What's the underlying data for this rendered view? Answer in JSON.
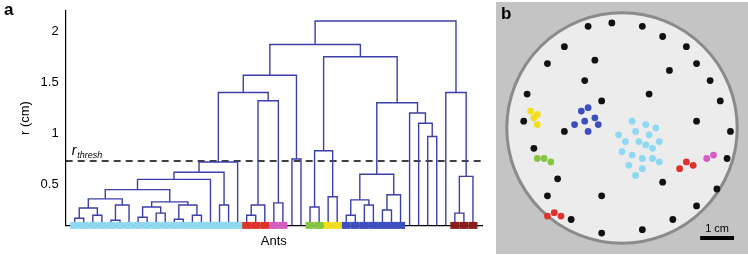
{
  "chart_data": [
    {
      "type": "dendrogram",
      "panel": "a",
      "ylabel": "r (cm)",
      "xlabel": "Ants",
      "ylim": [
        0.1,
        2.2
      ],
      "yticks": [
        0.5,
        1,
        1.5,
        2
      ],
      "tick_labels": "y",
      "color": "#3b3fa8",
      "threshold": {
        "value": 0.73,
        "label": "r",
        "subscript": "thresh",
        "line_style": "dashed"
      },
      "tree": {
        "r": 2.1,
        "c": [
          {
            "r": 1.87,
            "c": [
              {
                "r": 1.57,
                "c": [
                  {
                    "r": 1.4,
                    "c": [
                      {
                        "r": 0.72,
                        "c": [
                          {
                            "r": 0.62,
                            "c": [
                              {
                                "r": 0.55,
                                "c": [
                                  {
                                    "r": 0.45,
                                    "c": [
                                      {
                                        "r": 0.36,
                                        "c": [
                                          {
                                            "r": 0.27,
                                            "c": [
                                              {
                                                "r": 0.17,
                                                "c": [
                                                  "#8fd8f2",
                                                  "#8fd8f2"
                                                ]
                                              },
                                              {
                                                "r": 0.2,
                                                "c": [
                                                  "#8fd8f2",
                                                  "#8fd8f2"
                                                ]
                                              }
                                            ]
                                          },
                                          {
                                            "r": 0.3,
                                            "c": [
                                              {
                                                "r": 0.15,
                                                "c": [
                                                  "#8fd8f2",
                                                  "#8fd8f2"
                                                ]
                                              },
                                              "#8fd8f2"
                                            ]
                                          }
                                        ]
                                      },
                                      {
                                        "r": 0.33,
                                        "c": [
                                          {
                                            "r": 0.28,
                                            "c": [
                                              {
                                                "r": 0.18,
                                                "c": [
                                                  "#8fd8f2",
                                                  "#8fd8f2"
                                                ]
                                              },
                                              {
                                                "r": 0.22,
                                                "c": [
                                                  "#8fd8f2",
                                                  "#8fd8f2"
                                                ]
                                              }
                                            ]
                                          },
                                          {
                                            "r": 0.3,
                                            "c": [
                                              {
                                                "r": 0.16,
                                                "c": [
                                                  "#8fd8f2",
                                                  "#8fd8f2"
                                                ]
                                              },
                                              {
                                                "r": 0.2,
                                                "c": [
                                                  "#8fd8f2",
                                                  "#8fd8f2"
                                                ]
                                              }
                                            ]
                                          }
                                        ]
                                      }
                                    ]
                                  },
                                  "#8fd8f2"
                                ]
                              },
                              {
                                "r": 0.3,
                                "c": [
                                  "#8fd8f2",
                                  "#8fd8f2"
                                ]
                              }
                            ]
                          },
                          "#8fd8f2"
                        ]
                      },
                      {
                        "r": 1.32,
                        "c": [
                          {
                            "r": 0.3,
                            "c": [
                              {
                                "r": 0.2,
                                "c": [
                                  "#e0322c",
                                  "#e0322c"
                                ]
                              },
                              "#e0322c"
                            ]
                          },
                          {
                            "r": 0.32,
                            "c": [
                              "#d65bc3",
                              "#d65bc3"
                            ]
                          }
                        ]
                      }
                    ]
                  },
                  {
                    "r": 0.75,
                    "c": [
                      null,
                      null
                    ]
                  }
                ]
              },
              {
                "r": 1.75,
                "c": [
                  {
                    "r": 0.83,
                    "c": [
                      {
                        "r": 0.28,
                        "c": [
                          "#86c540",
                          "#86c540"
                        ]
                      },
                      {
                        "r": 0.38,
                        "c": [
                          "#f2df1a",
                          "#f2df1a"
                        ]
                      }
                    ]
                  },
                  {
                    "r": 1.3,
                    "c": [
                      {
                        "r": 0.6,
                        "c": [
                          {
                            "r": 0.35,
                            "c": [
                              {
                                "r": 0.2,
                                "c": [
                                  "#3d4fbf",
                                  "#3d4fbf"
                                ]
                              },
                              {
                                "r": 0.3,
                                "c": [
                                  "#3d4fbf",
                                  "#3d4fbf"
                                ]
                              }
                            ]
                          },
                          {
                            "r": 0.4,
                            "c": [
                              {
                                "r": 0.25,
                                "c": [
                                  "#3d4fbf",
                                  "#3d4fbf"
                                ]
                              },
                              "#3d4fbf"
                            ]
                          }
                        ]
                      },
                      {
                        "r": 1.2,
                        "c": [
                          null,
                          {
                            "r": 1.1,
                            "c": [
                              null,
                              {
                                "r": 0.97,
                                "c": [
                                  null,
                                  null
                                ]
                              }
                            ]
                          }
                        ]
                      }
                    ]
                  }
                ]
              }
            ]
          },
          {
            "r": 1.4,
            "c": [
              null,
              {
                "r": 0.58,
                "c": [
                  {
                    "r": 0.22,
                    "c": [
                      "#8a1c1c",
                      "#8a1c1c"
                    ]
                  },
                  "#8a1c1c"
                ]
              }
            ]
          }
        ]
      }
    },
    {
      "type": "scatter",
      "panel": "b",
      "xlim": [
        -3.6,
        3.6
      ],
      "ylim": [
        -3.6,
        3.6
      ],
      "tick_labels": false,
      "marker": "circle",
      "dish_radius": 3.4,
      "scale_bar": {
        "length": 1,
        "label": "1 cm"
      },
      "groups": [
        {
          "color": "#111111",
          "x": [
            -1.0,
            -0.3,
            0.6,
            1.2,
            1.9,
            2.2,
            -1.7,
            -2.2,
            -2.8,
            -2.9,
            -2.6,
            -2.2,
            -1.5,
            -0.6,
            0.6,
            1.5,
            2.2,
            2.8,
            3.1,
            3.2,
            2.9,
            2.6,
            -1.1,
            -0.6,
            0.8,
            2.2,
            -0.6,
            1.2,
            -1.7,
            -1.9,
            -0.8,
            1.4
          ],
          "y": [
            3.0,
            3.1,
            3.0,
            2.7,
            2.4,
            1.9,
            2.4,
            1.9,
            1.0,
            0.2,
            -0.6,
            -2.0,
            -2.7,
            -3.1,
            -3.0,
            -2.7,
            -2.3,
            -1.8,
            -0.9,
            -0.1,
            0.8,
            1.4,
            1.4,
            0.8,
            1.0,
            0.2,
            -2.0,
            -1.6,
            -0.1,
            -1.5,
            2.0,
            1.7
          ]
        },
        {
          "color": "#f2df1a",
          "x": [
            -2.7,
            -2.6,
            -2.5,
            -2.5
          ],
          "y": [
            0.5,
            0.3,
            0.1,
            0.4
          ]
        },
        {
          "color": "#86c540",
          "x": [
            -2.5,
            -2.3,
            -2.1
          ],
          "y": [
            -0.9,
            -0.9,
            -1.0
          ]
        },
        {
          "color": "#3d4fbf",
          "x": [
            -1.2,
            -1.0,
            -0.8,
            -1.1,
            -0.7,
            -1.0,
            -1.4
          ],
          "y": [
            0.5,
            0.6,
            0.3,
            0.2,
            0.1,
            -0.1,
            0.1
          ]
        },
        {
          "color": "#8fd8f2",
          "x": [
            0.1,
            0.4,
            0.7,
            0.3,
            0.6,
            0.8,
            0.0,
            0.9,
            0.7,
            0.3,
            1.1,
            0.6,
            0.2,
            -0.1,
            0.9,
            0.5,
            1.1,
            0.4,
            1.0
          ],
          "y": [
            -0.4,
            -0.1,
            -0.5,
            -0.8,
            -0.9,
            -0.2,
            -0.7,
            -0.6,
            0.1,
            0.2,
            -1.0,
            -1.2,
            -1.1,
            -0.2,
            -0.9,
            -0.4,
            -0.4,
            -1.4,
            0.0
          ]
        },
        {
          "color": "#e0322c",
          "x": [
            1.7,
            1.9,
            2.1,
            -2.2,
            -2.0,
            -1.8
          ],
          "y": [
            -1.2,
            -1.0,
            -1.1,
            -2.6,
            -2.5,
            -2.6
          ]
        },
        {
          "color": "#d65bc3",
          "x": [
            2.5,
            2.7
          ],
          "y": [
            -0.9,
            -0.8
          ]
        }
      ]
    }
  ]
}
